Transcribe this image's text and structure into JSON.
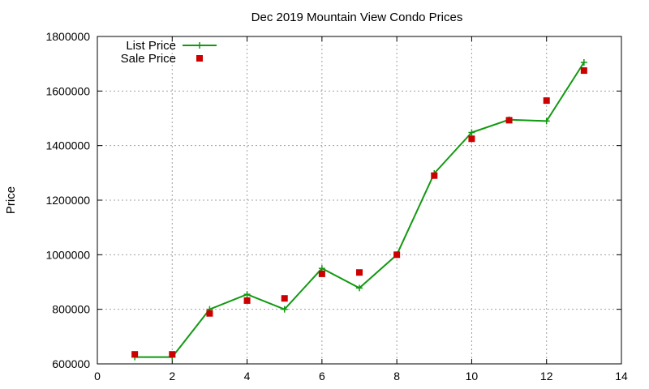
{
  "chart_data": {
    "type": "line",
    "title": "Dec 2019 Mountain View Condo Prices",
    "xlabel": "",
    "ylabel": "Price",
    "xlim": [
      0,
      14
    ],
    "ylim": [
      600000,
      1800000
    ],
    "x_ticks": [
      0,
      2,
      4,
      6,
      8,
      10,
      12,
      14
    ],
    "y_ticks": [
      600000,
      800000,
      1000000,
      1200000,
      1400000,
      1600000,
      1800000
    ],
    "x_tick_labels": [
      "0",
      "2",
      "4",
      "6",
      "8",
      "10",
      "12",
      "14"
    ],
    "y_tick_labels": [
      "600000",
      "800000",
      "1000000",
      "1200000",
      "1400000",
      "1600000",
      "1800000"
    ],
    "grid": true,
    "legend_position": "top-left",
    "series": [
      {
        "name": "List Price",
        "style": "line-with-plus-markers",
        "color": "#119911",
        "x": [
          1,
          2,
          3,
          4,
          5,
          6,
          7,
          8,
          9,
          10,
          11,
          12,
          13
        ],
        "values": [
          625000,
          625000,
          800000,
          855000,
          800000,
          950000,
          878000,
          1000000,
          1298000,
          1448000,
          1495000,
          1490000,
          1705000
        ]
      },
      {
        "name": "Sale Price",
        "style": "square-markers",
        "color": "#cc0000",
        "x": [
          1,
          2,
          3,
          4,
          5,
          6,
          7,
          8,
          9,
          10,
          11,
          12,
          13
        ],
        "values": [
          635000,
          635000,
          785000,
          832000,
          840000,
          930000,
          935000,
          1000000,
          1290000,
          1425000,
          1493000,
          1565000,
          1675000
        ]
      }
    ]
  }
}
